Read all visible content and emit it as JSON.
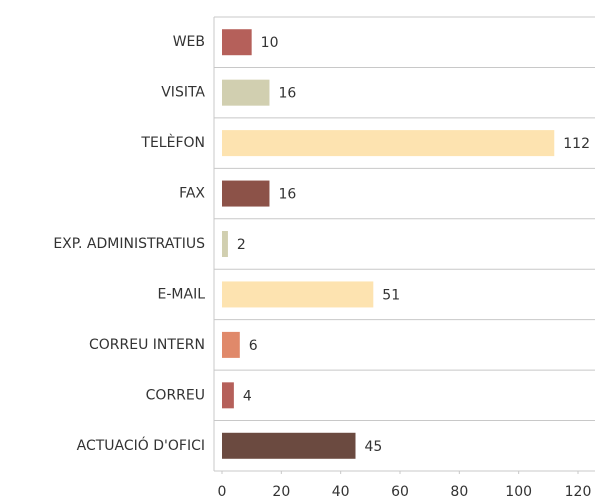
{
  "chart_data": {
    "type": "barh",
    "categories": [
      "WEB",
      "VISITA",
      "TELÈFON",
      "FAX",
      "EXP. ADMINISTRATIUS",
      "E-MAIL",
      "CORREU INTERN",
      "CORREU",
      "ACTUACIÓ D'OFICI"
    ],
    "values": [
      10,
      16,
      112,
      16,
      2,
      51,
      6,
      4,
      45
    ],
    "colors": [
      "#b5605a",
      "#d1cfb0",
      "#fde3b0",
      "#8c5248",
      "#d1cfb0",
      "#fde3b0",
      "#e0896a",
      "#b5605a",
      "#6b4a40"
    ],
    "xlim": [
      0,
      120
    ],
    "xticks": [
      0,
      20,
      40,
      60,
      80,
      100,
      120
    ]
  }
}
